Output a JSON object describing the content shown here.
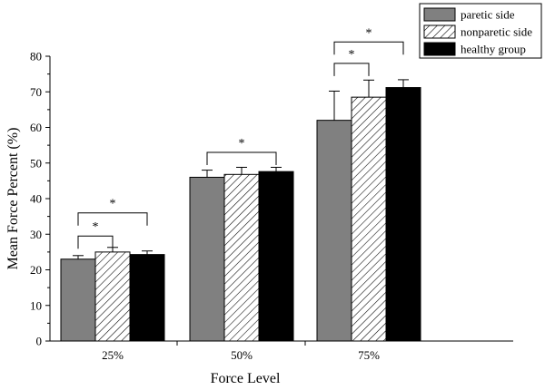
{
  "chart_data": {
    "type": "bar",
    "title": "",
    "xlabel": "Force Level",
    "ylabel": "Mean Force Percent (%)",
    "ylim": [
      0,
      80
    ],
    "yticks": [
      0,
      10,
      20,
      30,
      40,
      50,
      60,
      70,
      80
    ],
    "categories": [
      "25%",
      "50%",
      "75%"
    ],
    "series": [
      {
        "name": "paretic side",
        "values": [
          23.0,
          46.0,
          62.0
        ],
        "errors": [
          1.0,
          2.0,
          8.2
        ],
        "fill": "#808080",
        "pattern": "solid"
      },
      {
        "name": "nonparetic side",
        "values": [
          25.0,
          46.8,
          68.5
        ],
        "errors": [
          1.3,
          2.0,
          4.8
        ],
        "fill": "#ffffff",
        "pattern": "hatch"
      },
      {
        "name": "healthy group",
        "values": [
          24.3,
          47.6,
          71.2
        ],
        "errors": [
          1.0,
          1.2,
          2.2
        ],
        "fill": "#000000",
        "pattern": "solid"
      }
    ],
    "significance": [
      {
        "category": 0,
        "from_series": 0,
        "to_series": 1,
        "level": 29.5,
        "label": "*"
      },
      {
        "category": 0,
        "from_series": 0,
        "to_series": 2,
        "level": 36.0,
        "label": "*"
      },
      {
        "category": 1,
        "from_series": 0,
        "to_series": 2,
        "level": 53.0,
        "label": "*"
      },
      {
        "category": 2,
        "from_series": 0,
        "to_series": 1,
        "level": 78.0,
        "label": "*"
      },
      {
        "category": 2,
        "from_series": 0,
        "to_series": 2,
        "level": 84.0,
        "label": "*"
      }
    ],
    "legend_position": "top-right",
    "grid": false
  }
}
